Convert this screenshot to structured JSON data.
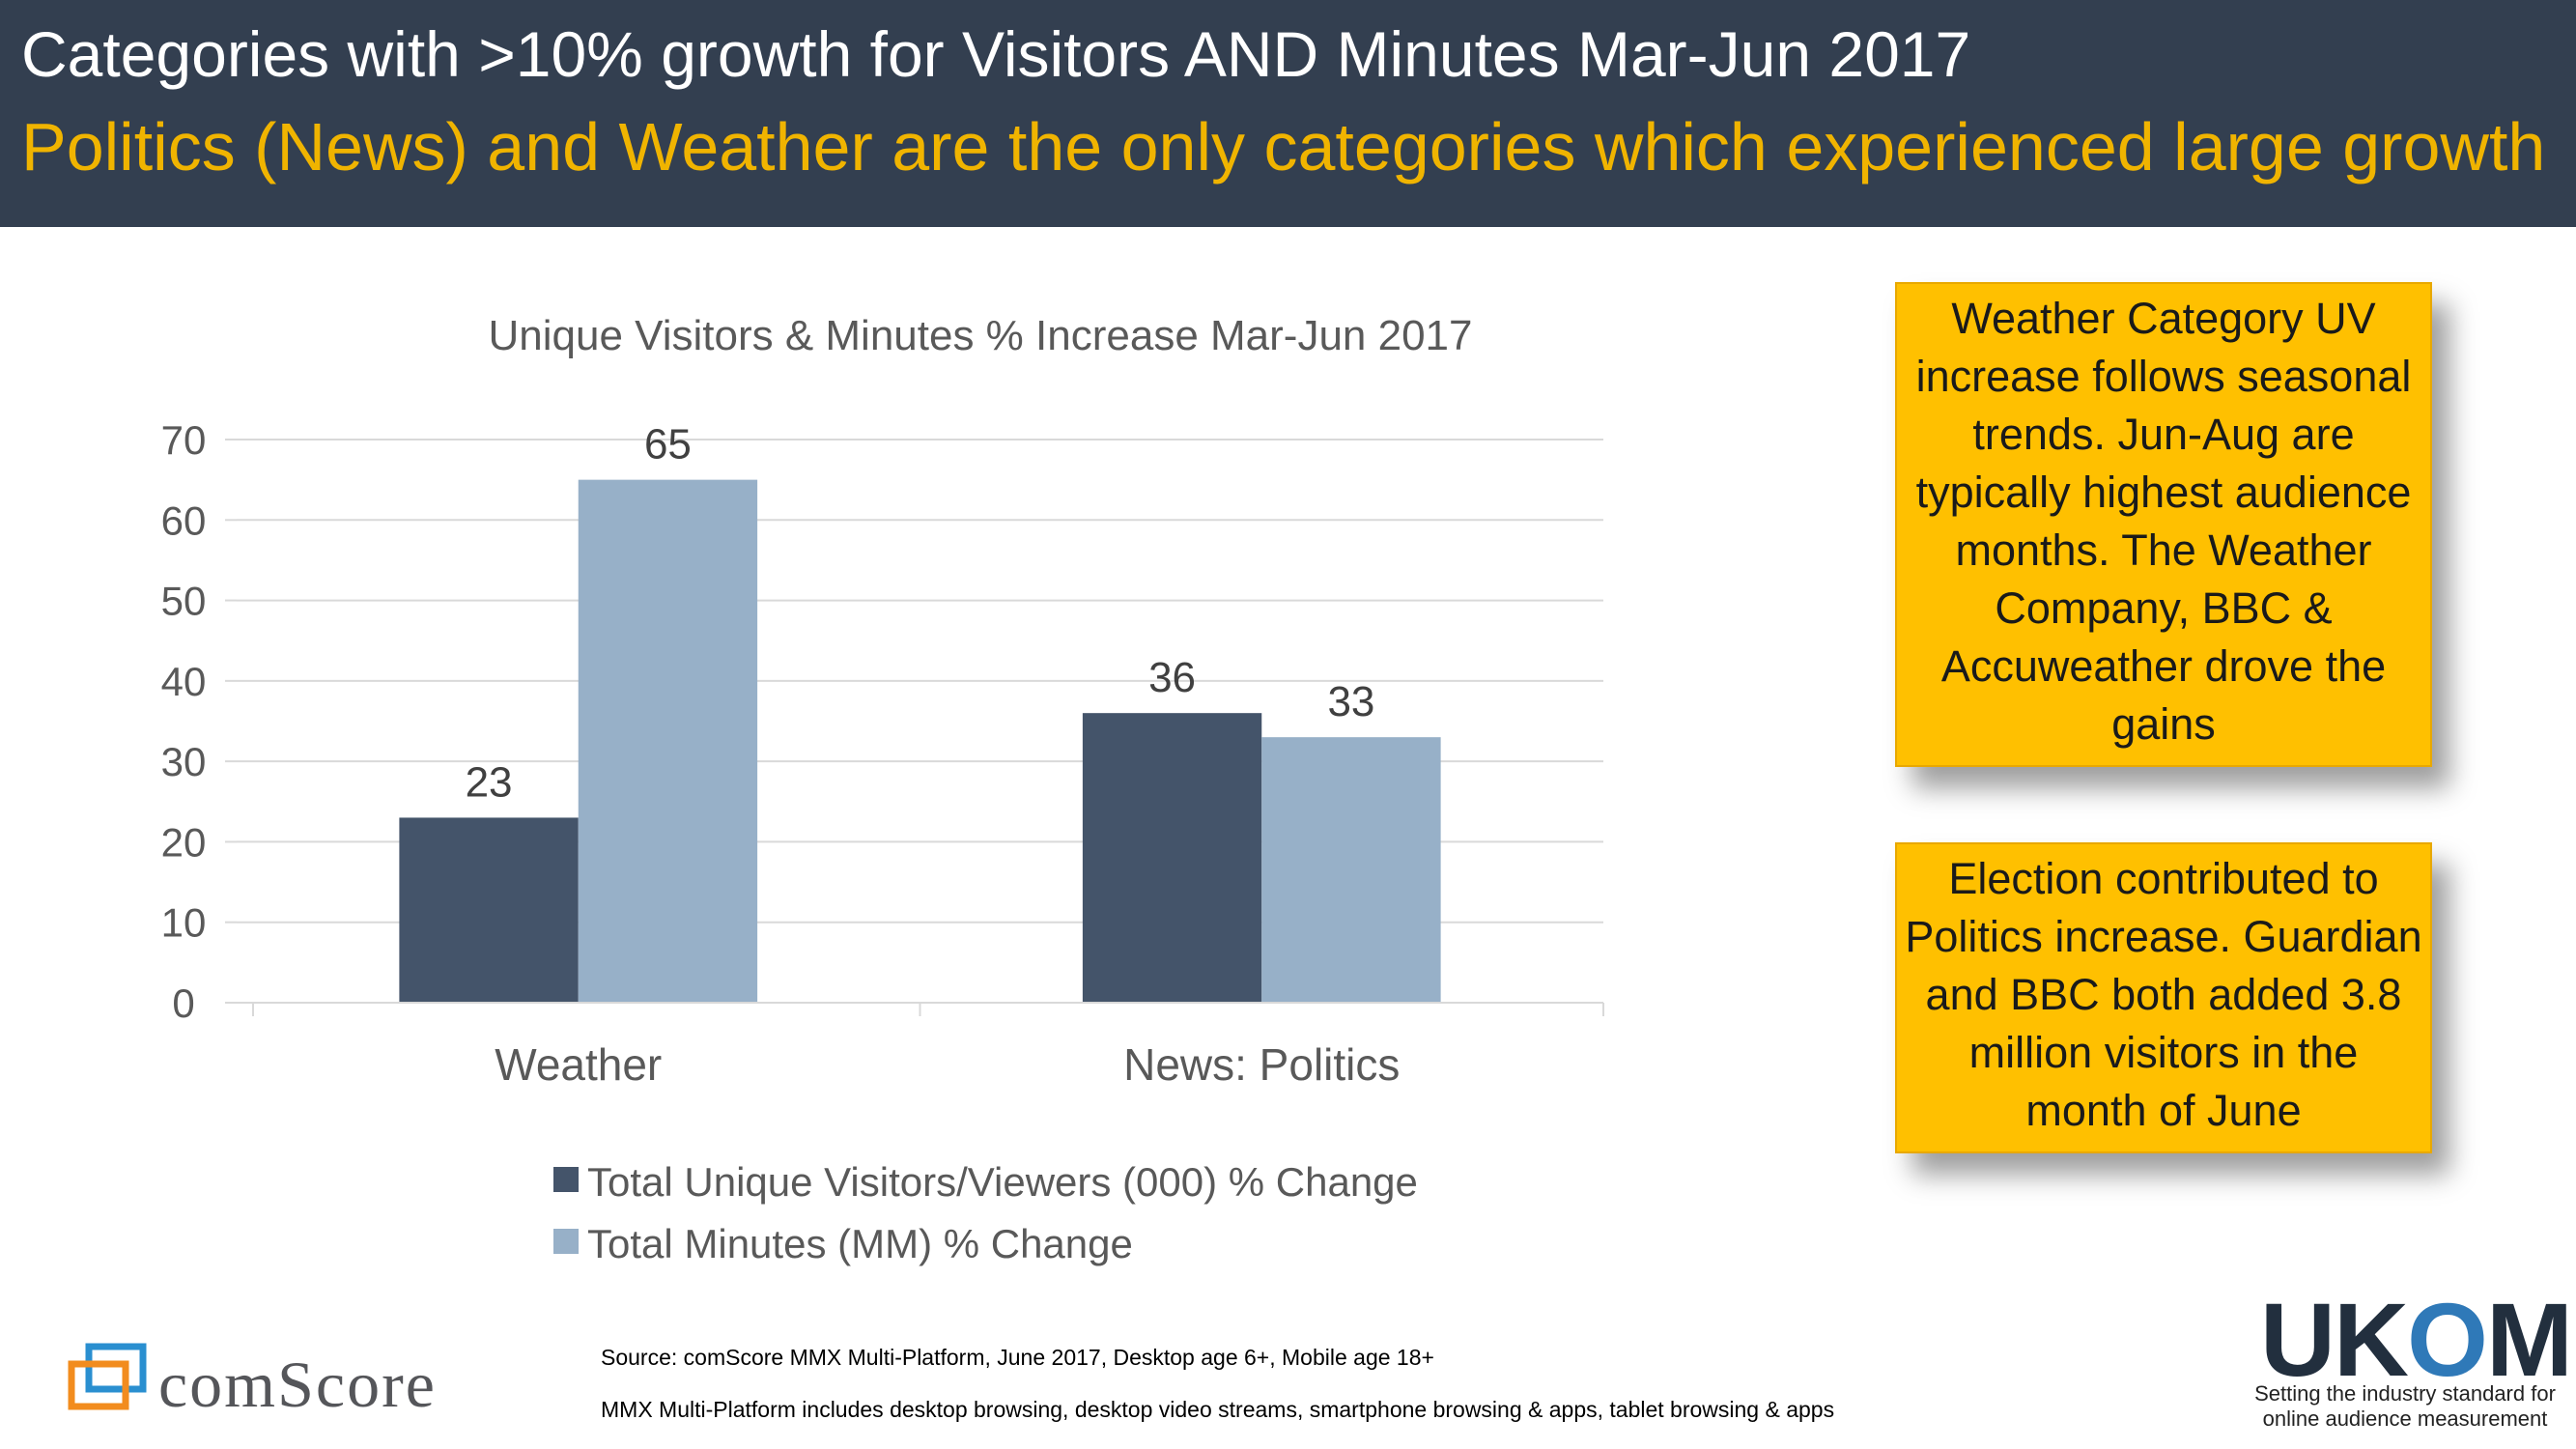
{
  "header": {
    "title": "Categories with >10% growth for Visitors AND Minutes Mar-Jun 2017",
    "subtitle": "Politics (News) and Weather are the only categories which experienced large growth"
  },
  "chart_data": {
    "type": "bar",
    "title": "Unique Visitors & Minutes % Increase Mar-Jun 2017",
    "categories": [
      "Weather",
      "News: Politics"
    ],
    "series": [
      {
        "name": "Total Unique Visitors/Viewers (000) % Change",
        "values": [
          23,
          36
        ],
        "color": "#44546a"
      },
      {
        "name": "Total Minutes (MM) % Change",
        "values": [
          65,
          33
        ],
        "color": "#97b0c8"
      }
    ],
    "ylim": [
      0,
      70
    ],
    "yticks": [
      0,
      10,
      20,
      30,
      40,
      50,
      60,
      70
    ],
    "xlabel": "",
    "ylabel": "",
    "grid": true,
    "legend": "bottom"
  },
  "callouts": [
    {
      "text": "Weather Category UV increase follows seasonal trends. Jun-Aug are typically highest audience months. The Weather Company, BBC & Accuweather drove the gains"
    },
    {
      "text": "Election contributed to Politics increase. Guardian and BBC both added 3.8 million visitors in the month of June"
    }
  ],
  "footer": {
    "source_line": "Source: comScore MMX Multi-Platform, June 2017, Desktop age 6+, Mobile age 18+",
    "note_line": "MMX Multi-Platform includes desktop browsing, desktop video streams, smartphone browsing & apps, tablet browsing & apps",
    "comscore_logo": "comScore",
    "ukom_logo_prefix": "UK",
    "ukom_logo_o": "O",
    "ukom_logo_suffix": "M",
    "ukom_tagline_1": "Setting the industry standard for",
    "ukom_tagline_2": "online audience measurement"
  },
  "colors": {
    "header_bg": "#333f50",
    "title": "#ffffff",
    "subtitle": "#f0b400",
    "callout_bg": "#ffc000"
  }
}
